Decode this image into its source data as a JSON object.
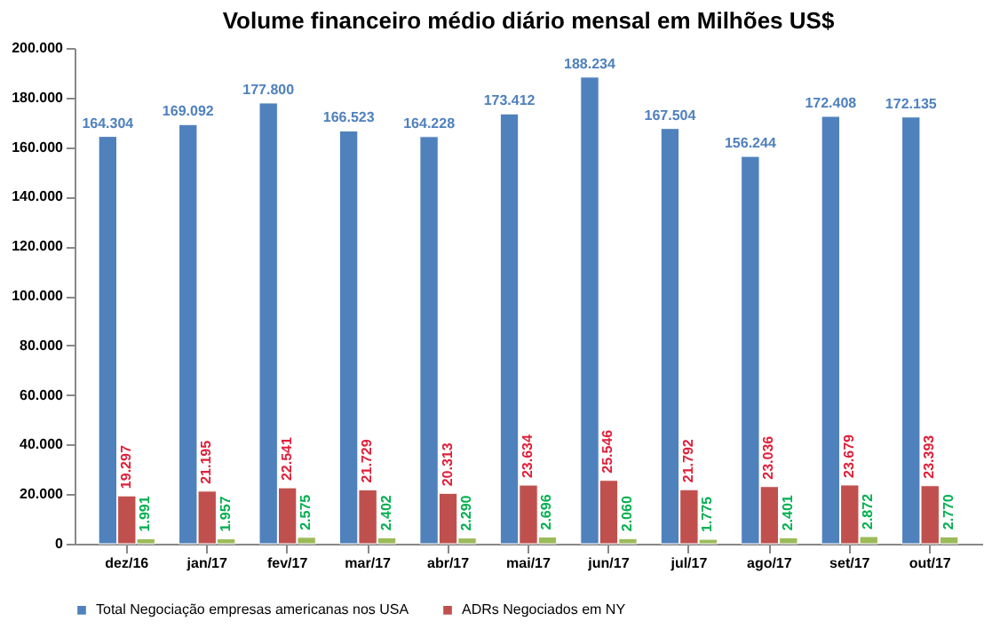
{
  "chart_data": {
    "type": "bar",
    "title": "Volume financeiro médio diário mensal em Milhões US$",
    "categories": [
      "dez/16",
      "jan/17",
      "fev/17",
      "mar/17",
      "abr/17",
      "mai/17",
      "jun/17",
      "jul/17",
      "ago/17",
      "set/17",
      "out/17"
    ],
    "series": [
      {
        "name": "Total Negociação  empresas americanas  nos USA",
        "color": "#4f81bd",
        "values": [
          164304,
          169092,
          177800,
          166523,
          164228,
          173412,
          188234,
          167504,
          156244,
          172408,
          172135
        ],
        "value_labels": [
          "164.304",
          "169.092",
          "177.800",
          "166.523",
          "164.228",
          "173.412",
          "188.234",
          "167.504",
          "156.244",
          "172.408",
          "172.135"
        ]
      },
      {
        "name": "ADRs Negociados  em NY",
        "color": "#c0504d",
        "values": [
          19297,
          21195,
          22541,
          21729,
          20313,
          23634,
          25546,
          21792,
          23036,
          23679,
          23393
        ],
        "value_labels": [
          "19.297",
          "21.195",
          "22.541",
          "21.729",
          "20.313",
          "23.634",
          "25.546",
          "21.792",
          "23.036",
          "23.679",
          "23.393"
        ]
      },
      {
        "color": "#9bbb59",
        "values": [
          1991,
          1957,
          2575,
          2402,
          2290,
          2696,
          2060,
          1775,
          2401,
          2872,
          2770
        ],
        "value_labels": [
          "1.991",
          "1.957",
          "2.575",
          "2.402",
          "2.290",
          "2.696",
          "2.060",
          "1.775",
          "2.401",
          "2.872",
          "2.770"
        ]
      }
    ],
    "ylim": [
      0,
      200000
    ],
    "yticks": [
      {
        "value": 0,
        "label": "0"
      },
      {
        "value": 20000,
        "label": "20.000"
      },
      {
        "value": 40000,
        "label": "40.000"
      },
      {
        "value": 60000,
        "label": "60.000"
      },
      {
        "value": 80000,
        "label": "80.000"
      },
      {
        "value": 100000,
        "label": "100.000"
      },
      {
        "value": 120000,
        "label": "120.000"
      },
      {
        "value": 140000,
        "label": "140.000"
      },
      {
        "value": 160000,
        "label": "160.000"
      },
      {
        "value": 180000,
        "label": "180.000"
      },
      {
        "value": 200000,
        "label": "200.000"
      }
    ],
    "grid": false,
    "legend": "bottom"
  }
}
